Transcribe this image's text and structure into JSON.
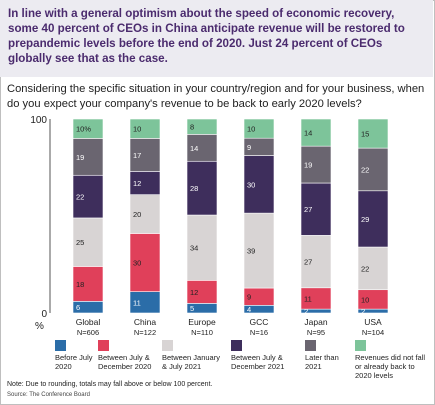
{
  "headline": "In line with a general optimism about the speed of economic recovery, some 40 percent of CEOs in China anticipate revenue will be restored to prepandemic levels before the end of 2020. Just 24 percent of CEOs globally see that as the case.",
  "question": "Considering the specific situation in your country/region and for your business, when do you expect your company's revenue to be back to early 2020 levels?",
  "footnote": "Note: Due to rounding, totals may fall above or below 100 percent.",
  "source": "Source: The Conference Board",
  "chart_data": {
    "type": "bar",
    "stacked": true,
    "y_ticks": [
      "0",
      "100"
    ],
    "y_unit": "%",
    "ylim": [
      0,
      100
    ],
    "categories": [
      "Global",
      "China",
      "Europe",
      "GCC",
      "Japan",
      "USA"
    ],
    "category_n": [
      "N=606",
      "N=122",
      "N=110",
      "N=16",
      "N=95",
      "N=104"
    ],
    "series": [
      {
        "name": "Before July 2020",
        "color": "#2b6da8",
        "values": [
          6,
          11,
          5,
          4,
          2,
          2
        ]
      },
      {
        "name": "Between July & December 2020",
        "color": "#e0405a",
        "values": [
          18,
          30,
          12,
          9,
          11,
          10
        ]
      },
      {
        "name": "Between January & July 2021",
        "color": "#d8d4d4",
        "values": [
          25,
          20,
          34,
          39,
          27,
          22
        ]
      },
      {
        "name": "Between July & December 2021",
        "color": "#3e2e5c",
        "values": [
          22,
          12,
          28,
          30,
          27,
          29
        ]
      },
      {
        "name": "Later than 2021",
        "color": "#6a6570",
        "values": [
          19,
          17,
          14,
          9,
          19,
          22
        ]
      },
      {
        "name": "Revenues did not fall or already back to 2020 levels",
        "color": "#7dc49a",
        "values": [
          10,
          10,
          8,
          10,
          14,
          15
        ]
      }
    ],
    "top_label_suffix": [
      "%",
      "",
      "",
      "",
      "",
      ""
    ],
    "legend_position": "bottom"
  },
  "legend": [
    {
      "label": "Before July 2020"
    },
    {
      "label": "Between July & December 2020"
    },
    {
      "label": "Between January & July 2021"
    },
    {
      "label": "Between July & December 2021"
    },
    {
      "label": "Later than 2021"
    },
    {
      "label": "Revenues did not fall or already back to 2020 levels"
    }
  ]
}
